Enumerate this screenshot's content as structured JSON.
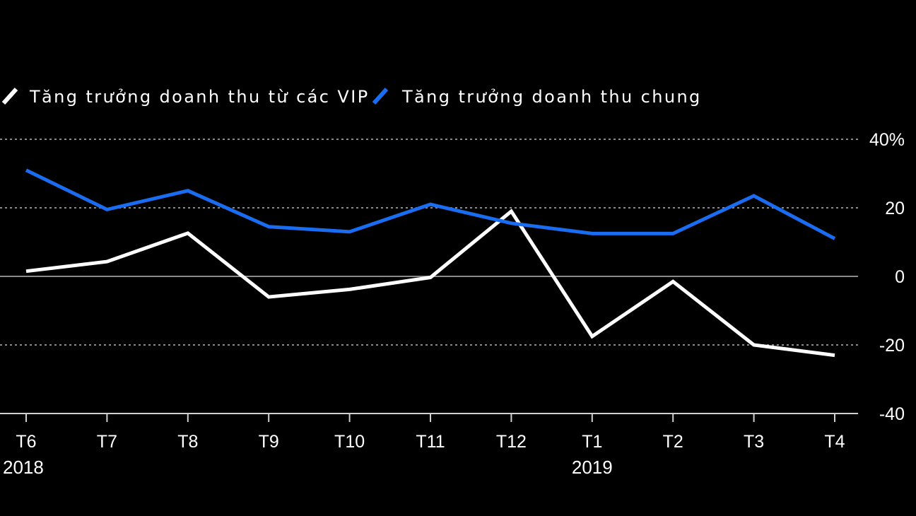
{
  "chart_data": {
    "type": "line",
    "title": "",
    "xlabel": "",
    "ylabel": "",
    "categories": [
      "T6",
      "T7",
      "T8",
      "T9",
      "T10",
      "T11",
      "T12",
      "T1",
      "T2",
      "T3",
      "T4"
    ],
    "year_labels": [
      {
        "text": "2018",
        "category": "T6"
      },
      {
        "text": "2019",
        "category": "T1"
      }
    ],
    "ylim": [
      -40,
      40
    ],
    "yticks": [
      -40,
      -20,
      0,
      20,
      40
    ],
    "ytick_labels": [
      "-40",
      "-20",
      "0",
      "20",
      "40%"
    ],
    "grid": true,
    "legend_position": "top-left",
    "series": [
      {
        "name": "Tăng trưởng doanh thu từ các VIP",
        "color": "#ffffff",
        "values": [
          1.5,
          4.3,
          12.6,
          -6,
          -3.8,
          -0.3,
          19,
          -17.5,
          -1.5,
          -20,
          -23
        ]
      },
      {
        "name": "Tăng trưởng doanh thu chung",
        "color": "#1a6cf0",
        "values": [
          31,
          19.5,
          25,
          14.5,
          13,
          21,
          15.5,
          12.5,
          12.5,
          23.5,
          11
        ]
      }
    ]
  }
}
